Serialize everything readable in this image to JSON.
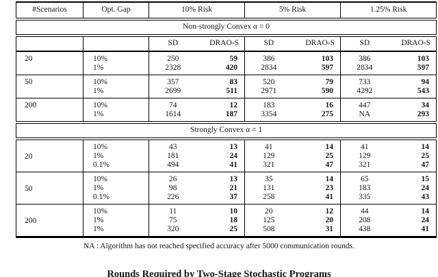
{
  "table": {
    "header": {
      "scenarios_label": "#Scenarios",
      "opt_gap_label": "Opt. Gap",
      "risk_groups": [
        "10% Risk",
        "5% Risk",
        "1.25% Risk"
      ],
      "method_cols": [
        "SD",
        "DRAO-S"
      ]
    },
    "sections": [
      {
        "title": "Non-strongly Convex α = 0",
        "groups": [
          {
            "scenarios": "20",
            "rows": [
              {
                "gap": "10%",
                "values": [
                  "250",
                  "59",
                  "386",
                  "103",
                  "386",
                  "103"
                ]
              },
              {
                "gap": "1%",
                "values": [
                  "2328",
                  "420",
                  "2834",
                  "597",
                  "2834",
                  "597"
                ]
              }
            ]
          },
          {
            "scenarios": "50",
            "rows": [
              {
                "gap": "10%",
                "values": [
                  "357",
                  "83",
                  "520",
                  "79",
                  "733",
                  "94"
                ]
              },
              {
                "gap": "1%",
                "values": [
                  "2699",
                  "511",
                  "2971",
                  "590",
                  "4292",
                  "543"
                ]
              }
            ]
          },
          {
            "scenarios": "200",
            "rows": [
              {
                "gap": "10%",
                "values": [
                  "74",
                  "12",
                  "183",
                  "16",
                  "447",
                  "34"
                ]
              },
              {
                "gap": "1%",
                "values": [
                  "1614",
                  "187",
                  "3354",
                  "275",
                  "NA",
                  "293"
                ]
              }
            ]
          }
        ]
      },
      {
        "title": "Strongly Convex α = 1",
        "groups": [
          {
            "scenarios": "20",
            "rows": [
              {
                "gap": "10%",
                "values": [
                  "43",
                  "13",
                  "41",
                  "14",
                  "41",
                  "14"
                ]
              },
              {
                "gap": "1%",
                "values": [
                  "181",
                  "24",
                  "129",
                  "25",
                  "129",
                  "25"
                ]
              },
              {
                "gap": "0.1%",
                "values": [
                  "494",
                  "41",
                  "321",
                  "47",
                  "321",
                  "47"
                ]
              }
            ]
          },
          {
            "scenarios": "50",
            "rows": [
              {
                "gap": "10%",
                "values": [
                  "26",
                  "13",
                  "35",
                  "14",
                  "65",
                  "15"
                ]
              },
              {
                "gap": "1%",
                "values": [
                  "98",
                  "21",
                  "131",
                  "23",
                  "183",
                  "24"
                ]
              },
              {
                "gap": "0.1%",
                "values": [
                  "226",
                  "37",
                  "258",
                  "41",
                  "335",
                  "43"
                ]
              }
            ]
          },
          {
            "scenarios": "200",
            "rows": [
              {
                "gap": "10%",
                "values": [
                  "11",
                  "10",
                  "20",
                  "12",
                  "44",
                  "14"
                ]
              },
              {
                "gap": "1%",
                "values": [
                  "75",
                  "18",
                  "125",
                  "20",
                  "208",
                  "24"
                ]
              },
              {
                "gap": "1%",
                "values": [
                  "320",
                  "25",
                  "508",
                  "31",
                  "438",
                  "41"
                ]
              }
            ]
          }
        ]
      }
    ],
    "footnote": "NA : Algorithm has not reached specified accuracy after 5000 communication rounds.",
    "clipped_caption": "Rounds Required by Two-Stage Stochastic Programs"
  }
}
